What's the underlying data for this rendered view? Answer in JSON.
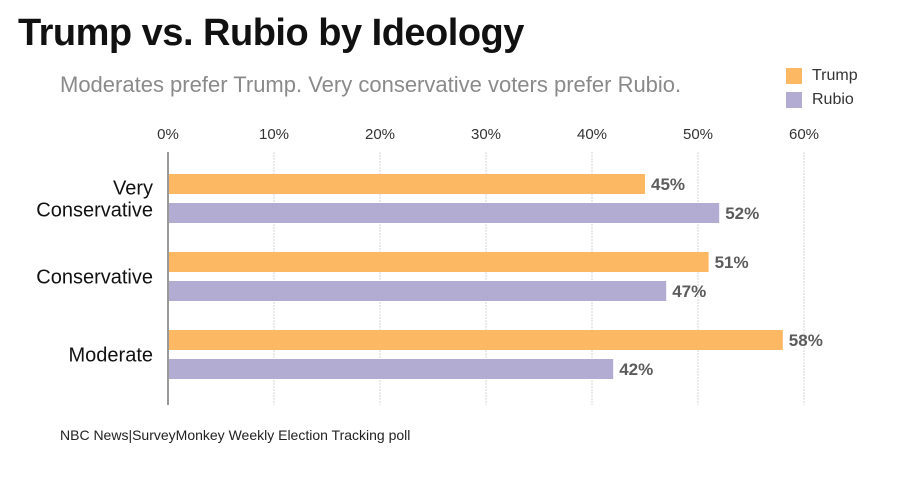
{
  "title": "Trump vs. Rubio by Ideology",
  "subtitle": "Moderates prefer Trump. Very conservative voters prefer Rubio.",
  "source": "NBC News|SurveyMonkey Weekly Election Tracking poll",
  "legend": [
    {
      "name": "Trump",
      "color": "#fdb863"
    },
    {
      "name": "Rubio",
      "color": "#b2abd2"
    }
  ],
  "chart_data": {
    "type": "bar",
    "orientation": "horizontal",
    "title": "Trump vs. Rubio by Ideology",
    "subtitle": "Moderates prefer Trump. Very conservative voters prefer Rubio.",
    "categories": [
      [
        "Very",
        "Conservative"
      ],
      [
        "Conservative"
      ],
      [
        "Moderate"
      ]
    ],
    "series": [
      {
        "name": "Trump",
        "color": "#fdb863",
        "values": [
          45,
          51,
          58
        ],
        "labels": [
          "45%",
          "51%",
          "58%"
        ]
      },
      {
        "name": "Rubio",
        "color": "#b2abd2",
        "values": [
          52,
          47,
          42
        ],
        "labels": [
          "52%",
          "47%",
          "42%"
        ]
      }
    ],
    "xlim": [
      0,
      60
    ],
    "xticks": [
      0,
      10,
      20,
      30,
      40,
      50,
      60
    ],
    "xtick_labels": [
      "0%",
      "10%",
      "20%",
      "30%",
      "40%",
      "50%",
      "60%"
    ],
    "xaxis_position": "top",
    "grid": true,
    "legend_position": "top-right",
    "xlabel": "",
    "ylabel": ""
  }
}
